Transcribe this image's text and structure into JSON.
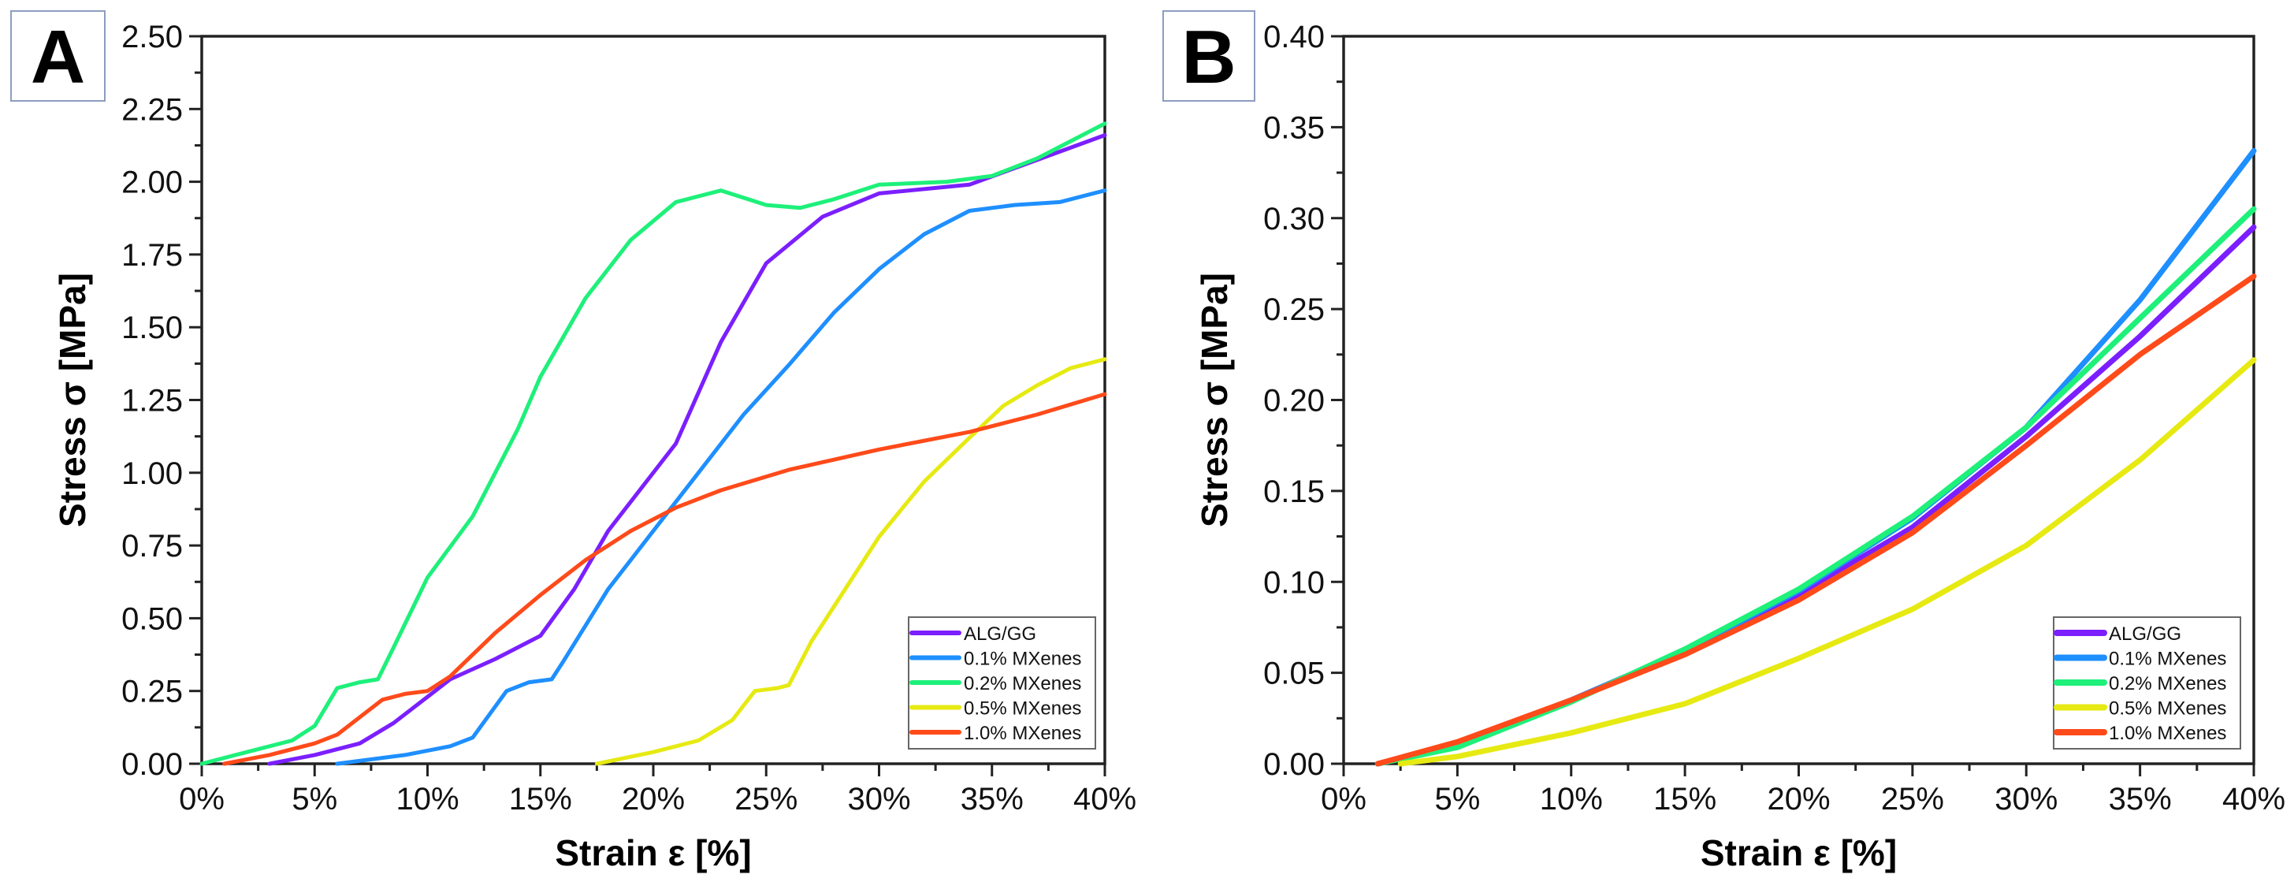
{
  "chart_data": [
    {
      "panel_label": "A",
      "type": "line",
      "xlabel": "Strain ε [%]",
      "ylabel": "Stress σ [MPa]",
      "xlim": [
        0,
        40
      ],
      "ylim": [
        0,
        2.5
      ],
      "xticks": [
        "0%",
        "5%",
        "10%",
        "15%",
        "20%",
        "25%",
        "30%",
        "35%",
        "40%"
      ],
      "yticks": [
        "0.00",
        "0.25",
        "0.50",
        "0.75",
        "1.00",
        "1.25",
        "1.50",
        "1.75",
        "2.00",
        "2.25",
        "2.50"
      ],
      "grid": false,
      "legend_position": "bottom-right",
      "series": [
        {
          "name": "ALG/GG",
          "color": "#7b1fff",
          "x": [
            3,
            5,
            7,
            8.5,
            10,
            11,
            13,
            15,
            16.5,
            18,
            21,
            23,
            25,
            27.5,
            30,
            34,
            40
          ],
          "y": [
            0,
            0.03,
            0.07,
            0.14,
            0.23,
            0.29,
            0.36,
            0.44,
            0.6,
            0.8,
            1.1,
            1.45,
            1.72,
            1.88,
            1.96,
            1.99,
            2.16
          ]
        },
        {
          "name": "0.1% MXenes",
          "color": "#1e8fff",
          "x": [
            6,
            9,
            11,
            12,
            13.5,
            14.5,
            15.5,
            16,
            18,
            20,
            22,
            24,
            26,
            28,
            30,
            32,
            34,
            36,
            38,
            40
          ],
          "y": [
            0,
            0.03,
            0.06,
            0.09,
            0.25,
            0.28,
            0.29,
            0.35,
            0.6,
            0.8,
            1.0,
            1.2,
            1.37,
            1.55,
            1.7,
            1.82,
            1.9,
            1.92,
            1.93,
            1.97
          ]
        },
        {
          "name": "0.2% MXenes",
          "color": "#1ef07a",
          "x": [
            0,
            2,
            4,
            5,
            6,
            7,
            7.8,
            8.5,
            10,
            12,
            14,
            15,
            17,
            19,
            21,
            23,
            25,
            26.5,
            28,
            30,
            33,
            35,
            37,
            40
          ],
          "y": [
            0,
            0.04,
            0.08,
            0.13,
            0.26,
            0.28,
            0.29,
            0.4,
            0.64,
            0.85,
            1.15,
            1.33,
            1.6,
            1.8,
            1.93,
            1.97,
            1.92,
            1.91,
            1.94,
            1.99,
            2.0,
            2.02,
            2.08,
            2.2
          ]
        },
        {
          "name": "0.5% MXenes",
          "color": "#e6ea12",
          "x": [
            17.5,
            20,
            22,
            23.5,
            24.5,
            25.5,
            26,
            27,
            28.5,
            30,
            32,
            34,
            35.5,
            37,
            38.5,
            40
          ],
          "y": [
            0,
            0.04,
            0.08,
            0.15,
            0.25,
            0.26,
            0.27,
            0.42,
            0.6,
            0.78,
            0.97,
            1.12,
            1.23,
            1.3,
            1.36,
            1.39
          ]
        },
        {
          "name": "1.0% MXenes",
          "color": "#ff4a1a",
          "x": [
            1,
            3,
            5,
            6,
            8,
            9,
            10,
            11,
            13,
            15,
            17,
            19,
            21,
            23,
            26,
            30,
            34,
            37,
            40
          ],
          "y": [
            0,
            0.03,
            0.07,
            0.1,
            0.22,
            0.24,
            0.25,
            0.3,
            0.45,
            0.58,
            0.7,
            0.8,
            0.88,
            0.94,
            1.01,
            1.08,
            1.14,
            1.2,
            1.27
          ]
        }
      ]
    },
    {
      "panel_label": "B",
      "type": "line",
      "xlabel": "Strain ε [%]",
      "ylabel": "Stress σ [MPa]",
      "xlim": [
        0,
        40
      ],
      "ylim": [
        0,
        0.4
      ],
      "xticks": [
        "0%",
        "5%",
        "10%",
        "15%",
        "20%",
        "25%",
        "30%",
        "35%",
        "40%"
      ],
      "yticks": [
        "0.00",
        "0.05",
        "0.10",
        "0.15",
        "0.20",
        "0.25",
        "0.30",
        "0.35",
        "0.40"
      ],
      "grid": false,
      "legend_position": "bottom-right",
      "series": [
        {
          "name": "ALG/GG",
          "color": "#7b1fff",
          "x": [
            1.5,
            5,
            10,
            15,
            20,
            25,
            30,
            35,
            40
          ],
          "y": [
            0,
            0.01,
            0.035,
            0.062,
            0.093,
            0.13,
            0.18,
            0.235,
            0.295
          ]
        },
        {
          "name": "0.1% MXenes",
          "color": "#1e8fff",
          "x": [
            1.5,
            5,
            10,
            15,
            20,
            25,
            30,
            35,
            40
          ],
          "y": [
            0,
            0.01,
            0.035,
            0.062,
            0.095,
            0.135,
            0.185,
            0.255,
            0.337
          ]
        },
        {
          "name": "0.2% MXenes",
          "color": "#1ef07a",
          "x": [
            1.5,
            5,
            10,
            15,
            20,
            25,
            30,
            35,
            40
          ],
          "y": [
            0,
            0.009,
            0.034,
            0.063,
            0.096,
            0.136,
            0.185,
            0.245,
            0.305
          ]
        },
        {
          "name": "0.5% MXenes",
          "color": "#e6ea12",
          "x": [
            2.5,
            5,
            10,
            15,
            20,
            25,
            30,
            35,
            40
          ],
          "y": [
            0,
            0.004,
            0.017,
            0.033,
            0.058,
            0.085,
            0.12,
            0.167,
            0.222
          ]
        },
        {
          "name": "1.0% MXenes",
          "color": "#ff4a1a",
          "x": [
            1.5,
            5,
            10,
            15,
            20,
            25,
            30,
            35,
            40
          ],
          "y": [
            0,
            0.012,
            0.035,
            0.06,
            0.09,
            0.127,
            0.175,
            0.225,
            0.268
          ]
        }
      ]
    }
  ]
}
